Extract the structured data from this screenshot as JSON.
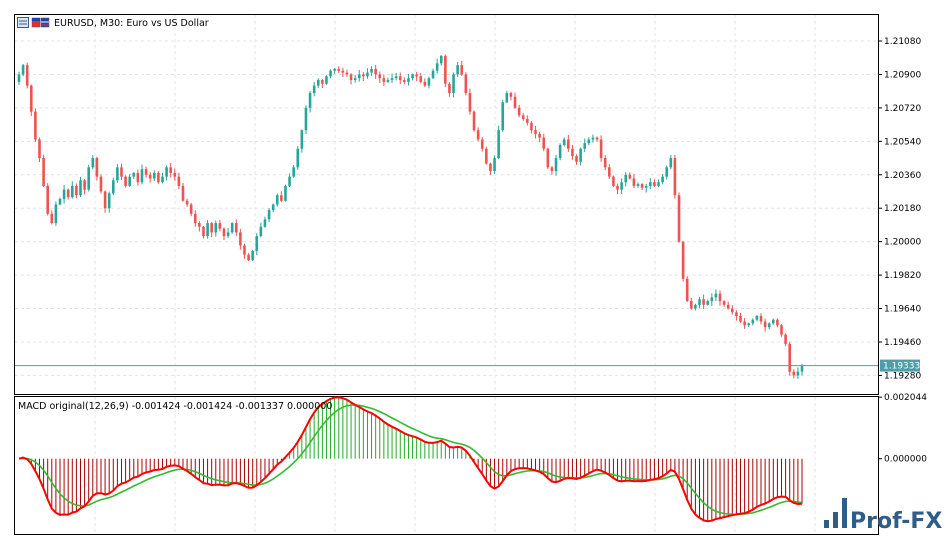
{
  "header": {
    "symbol_title": "EURUSD, M30:  Euro vs US Dollar",
    "macd_label": "MACD original(12,26,9) -0.001424 -0.001424 -0.001337 0.000000"
  },
  "price_axis": {
    "ticks": [
      "1.21080",
      "1.20900",
      "1.20720",
      "1.20540",
      "1.20360",
      "1.20180",
      "1.20000",
      "1.19820",
      "1.19640",
      "1.19460",
      "1.19280"
    ],
    "current_price_label": "1.19333",
    "current_price": 1.19333
  },
  "macd_axis": {
    "ticks": [
      "0.002044",
      "0.000000"
    ]
  },
  "watermark": {
    "text": "Prof-FX"
  },
  "colors": {
    "bull": "#26a69a",
    "bear": "#ef5350",
    "hist_up": "#22aa22",
    "hist_down": "#aa0000",
    "signal": "#ff0000",
    "macd_line": "#33bb33",
    "grid": "#e4e4e4",
    "price_line": "#4c9faa"
  },
  "chart_data": {
    "type": "candlestick",
    "symbol": "EURUSD",
    "timeframe": "M30",
    "ylim": [
      1.1918,
      1.2122
    ],
    "close_path": [
      1.209,
      1.2095,
      1.2084,
      1.207,
      1.2055,
      1.2045,
      1.203,
      1.2015,
      1.201,
      1.202,
      1.2023,
      1.2028,
      1.2024,
      1.203,
      1.2025,
      1.2033,
      1.2028,
      1.204,
      1.2045,
      1.2035,
      1.2027,
      1.2018,
      1.2026,
      1.2033,
      1.204,
      1.2035,
      1.203,
      1.2035,
      1.2037,
      1.2032,
      1.2039,
      1.2036,
      1.2034,
      1.2037,
      1.2032,
      1.2035,
      1.204,
      1.2037,
      1.2035,
      1.203,
      1.2022,
      1.202,
      1.2015,
      1.201,
      1.2008,
      1.2003,
      1.201,
      1.2005,
      1.201,
      1.2007,
      1.2003,
      1.2005,
      1.201,
      1.2005,
      1.1998,
      1.1993,
      1.199,
      1.1995,
      1.2003,
      1.2008,
      1.2012,
      1.2017,
      1.202,
      1.2025,
      1.2022,
      1.203,
      1.2035,
      1.204,
      1.205,
      1.206,
      1.2072,
      1.208,
      1.2084,
      1.2087,
      1.2085,
      1.2089,
      1.2092,
      1.2093,
      1.2092,
      1.2091,
      1.209,
      1.2087,
      1.2088,
      1.209,
      1.2089,
      1.2091,
      1.2093,
      1.209,
      1.2088,
      1.2086,
      1.2087,
      1.2088,
      1.2089,
      1.2087,
      1.2086,
      1.2088,
      1.209,
      1.2089,
      1.2086,
      1.2084,
      1.2088,
      1.2092,
      1.2096,
      1.21,
      1.2085,
      1.208,
      1.209,
      1.2095,
      1.209,
      1.208,
      1.207,
      1.206,
      1.2055,
      1.205,
      1.2042,
      1.2038,
      1.2045,
      1.206,
      1.2075,
      1.208,
      1.2078,
      1.2072,
      1.2068,
      1.2066,
      1.2064,
      1.206,
      1.2058,
      1.2056,
      1.205,
      1.204,
      1.2038,
      1.2045,
      1.2052,
      1.2055,
      1.205,
      1.2046,
      1.2043,
      1.205,
      1.2053,
      1.2055,
      1.2056,
      1.2055,
      1.2045,
      1.204,
      1.2035,
      1.203,
      1.2028,
      1.2032,
      1.2036,
      1.2034,
      1.203,
      1.2031,
      1.2029,
      1.203,
      1.2032,
      1.203,
      1.2032,
      1.2035,
      1.204,
      1.2045,
      1.2025,
      1.2,
      1.198,
      1.1968,
      1.1964,
      1.1966,
      1.1969,
      1.1966,
      1.1968,
      1.197,
      1.1972,
      1.1968,
      1.1966,
      1.1964,
      1.1962,
      1.196,
      1.1957,
      1.1955,
      1.1956,
      1.1958,
      1.196,
      1.1957,
      1.1954,
      1.1956,
      1.1958,
      1.1955,
      1.195,
      1.1945,
      1.193,
      1.1928,
      1.193,
      1.1933
    ],
    "macd_range": [
      -0.0025,
      0.00205
    ],
    "macd_zero": 0.0
  }
}
